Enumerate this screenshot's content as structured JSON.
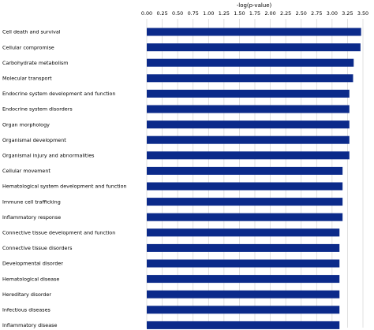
{
  "chart_data": {
    "type": "bar",
    "orientation": "horizontal",
    "xlabel": "-log(p-value)",
    "xlim": [
      0,
      3.5
    ],
    "xticks": [
      "0.00",
      "0.25",
      "0.50",
      "0.75",
      "1.00",
      "1.25",
      "1.50",
      "1.75",
      "2.00",
      "2.25",
      "2.50",
      "2.75",
      "3.00",
      "3.25",
      "3.50"
    ],
    "grid": true,
    "bar_color": "#0b2a8a",
    "categories": [
      "Cell death and survival",
      "Cellular compromise",
      "Carbohydrate metabolism",
      "Molecular transport",
      "Endocrine system development and function",
      "Endocrine system disorders",
      "Organ morphology",
      "Organismal development",
      "Organismal injury and abnormalities",
      "Cellular movement",
      "Hematological system development and function",
      "Immune cell trafficking",
      "Inflammatory response",
      "Connective tissue development and function",
      "Connective tissue disorders",
      "Developmental disorder",
      "Hematological disease",
      "Hereditary disorder",
      "Infectious diseases",
      "Inflammatory disease"
    ],
    "values": [
      3.47,
      3.46,
      3.35,
      3.34,
      3.28,
      3.28,
      3.28,
      3.28,
      3.28,
      3.17,
      3.17,
      3.17,
      3.17,
      3.12,
      3.12,
      3.12,
      3.12,
      3.12,
      3.12,
      3.12
    ]
  }
}
